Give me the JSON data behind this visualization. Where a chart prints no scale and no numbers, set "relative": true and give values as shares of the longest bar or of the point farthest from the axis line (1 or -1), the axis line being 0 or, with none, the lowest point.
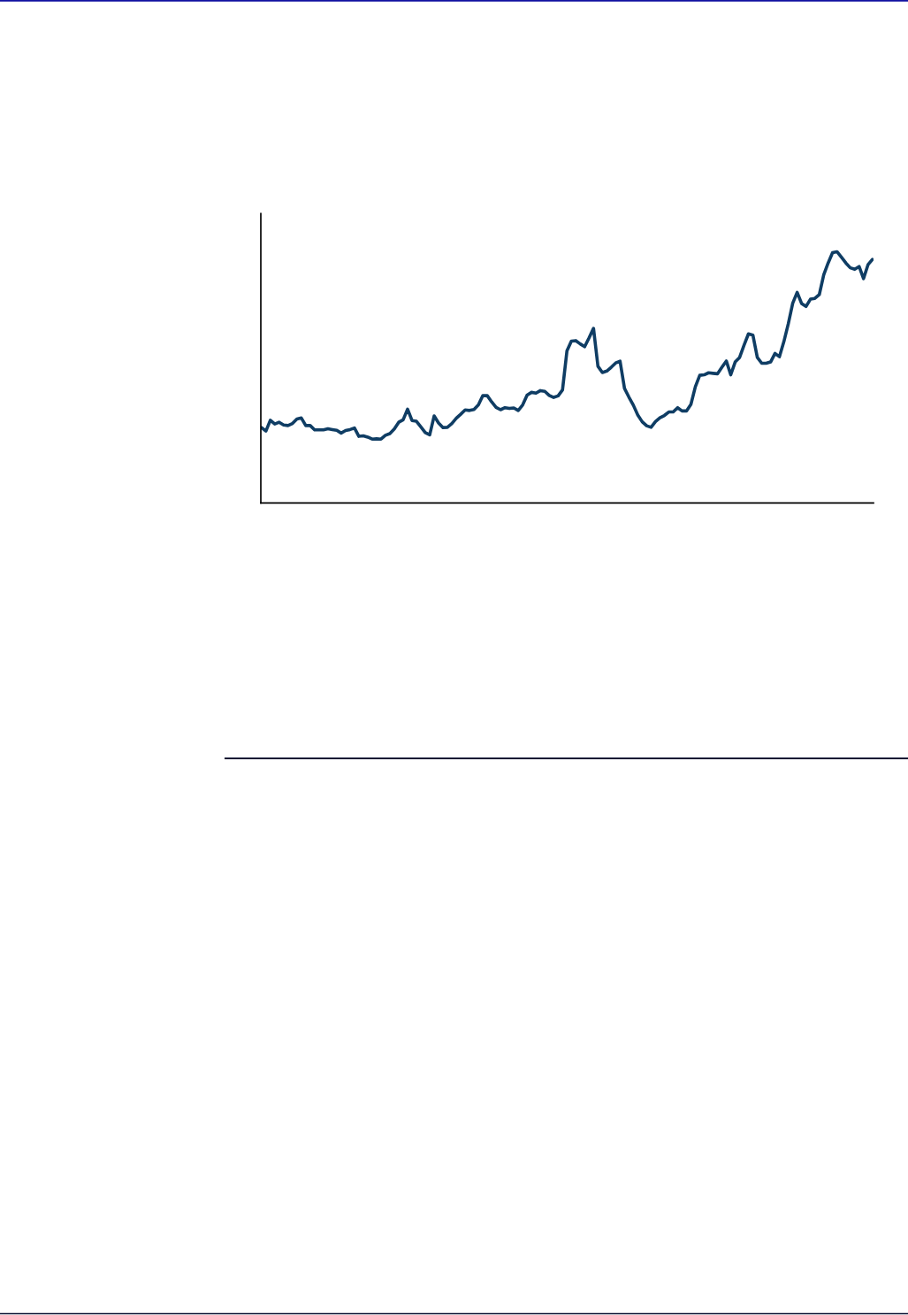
{
  "chart_data": {
    "type": "line",
    "relative": true,
    "line_style": "solid",
    "categories": [
      null,
      null,
      null,
      null,
      null,
      null,
      null,
      null,
      null,
      null,
      null,
      null,
      null,
      null,
      null,
      null,
      null,
      null,
      null,
      null,
      null,
      null,
      null,
      null,
      null,
      null,
      null,
      null,
      null,
      null,
      null,
      null,
      null,
      null,
      null,
      null,
      null,
      null,
      null,
      null,
      null,
      null,
      null,
      null,
      null,
      null,
      null,
      null,
      null,
      null,
      null,
      null,
      null,
      null,
      null,
      null,
      null,
      null,
      null,
      null,
      null,
      null,
      null,
      null,
      null,
      null,
      null,
      null,
      null,
      null,
      null,
      null,
      null,
      null,
      null,
      null,
      null,
      null,
      null,
      null,
      null,
      null,
      null,
      null,
      null,
      null,
      null,
      null,
      null,
      null,
      null,
      null,
      null,
      null,
      null,
      null,
      null,
      null,
      null,
      null,
      null,
      null,
      null,
      null,
      null,
      null,
      null,
      null,
      null,
      null,
      null,
      null,
      null,
      null,
      null,
      null,
      null,
      null,
      null,
      null,
      null,
      null,
      null,
      null,
      null,
      null,
      null,
      null,
      null,
      null,
      null,
      null,
      null,
      null,
      null,
      null,
      null,
      null,
      null
    ],
    "series": [
      {
        "color": "#0f3d64",
        "values": [
          0.3,
          0.286,
          0.329,
          0.314,
          0.321,
          0.31,
          0.308,
          0.316,
          0.334,
          0.338,
          0.308,
          0.308,
          0.291,
          0.291,
          0.291,
          0.295,
          0.292,
          0.289,
          0.278,
          0.288,
          0.292,
          0.298,
          0.265,
          0.267,
          0.262,
          0.254,
          0.255,
          0.254,
          0.269,
          0.276,
          0.294,
          0.321,
          0.331,
          0.373,
          0.328,
          0.325,
          0.303,
          0.28,
          0.271,
          0.346,
          0.318,
          0.3,
          0.301,
          0.316,
          0.337,
          0.353,
          0.37,
          0.368,
          0.372,
          0.39,
          0.427,
          0.427,
          0.402,
          0.38,
          0.371,
          0.379,
          0.376,
          0.378,
          0.368,
          0.39,
          0.429,
          0.44,
          0.437,
          0.447,
          0.444,
          0.428,
          0.42,
          0.426,
          0.45,
          0.605,
          0.644,
          0.646,
          0.633,
          0.622,
          0.657,
          0.695,
          0.544,
          0.519,
          0.525,
          0.54,
          0.557,
          0.564,
          0.456,
          0.421,
          0.389,
          0.35,
          0.323,
          0.307,
          0.301,
          0.324,
          0.339,
          0.348,
          0.362,
          0.362,
          0.379,
          0.366,
          0.366,
          0.392,
          0.462,
          0.508,
          0.51,
          0.518,
          0.516,
          0.514,
          0.54,
          0.565,
          0.51,
          0.561,
          0.579,
          0.628,
          0.673,
          0.668,
          0.579,
          0.556,
          0.556,
          0.561,
          0.595,
          0.582,
          0.642,
          0.713,
          0.795,
          0.838,
          0.794,
          0.782,
          0.811,
          0.814,
          0.829,
          0.908,
          0.955,
          0.996,
          1.0,
          0.978,
          0.955,
          0.936,
          0.93,
          0.941,
          0.893,
          0.948,
          0.969
        ]
      }
    ]
  }
}
